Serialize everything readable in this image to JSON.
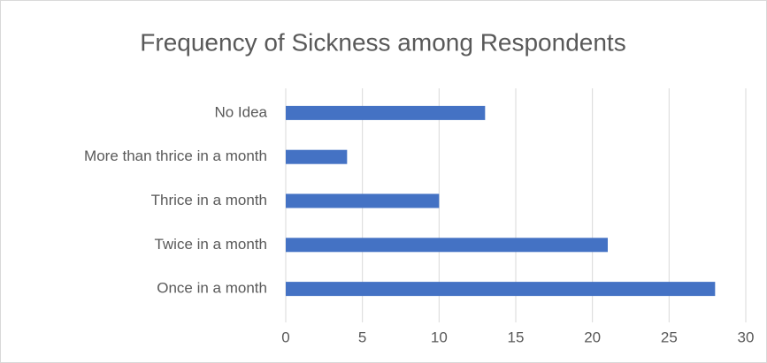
{
  "chart_data": {
    "type": "bar",
    "orientation": "horizontal",
    "title": "Frequency of Sickness among Respondents",
    "categories": [
      "Once in a month",
      "Twice in a month",
      "Thrice in a month",
      "More than thrice in a month",
      "No Idea"
    ],
    "values": [
      28,
      21,
      10,
      4,
      13
    ],
    "color": "#4472c4",
    "xlim": [
      0,
      30
    ],
    "xticks": [
      0,
      5,
      10,
      15,
      20,
      25,
      30
    ],
    "grid": true
  }
}
